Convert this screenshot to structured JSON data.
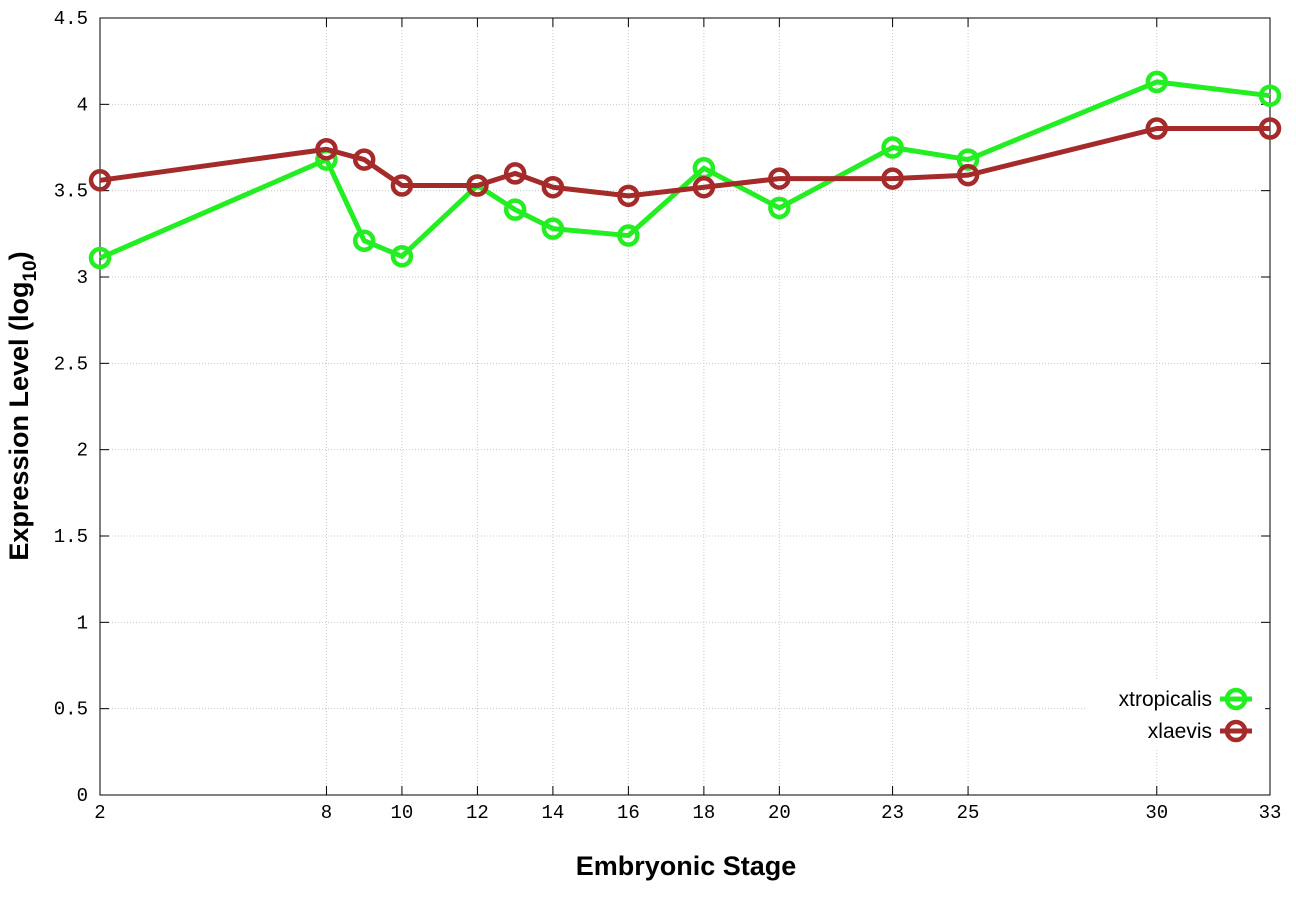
{
  "chart_data": {
    "type": "line",
    "title": "",
    "xlabel": "Embryonic Stage",
    "ylabel": "Expression Level (log",
    "ylabel_subscript": "10",
    "ylabel_suffix": ")",
    "xlim": [
      2,
      33
    ],
    "ylim": [
      0,
      4.5
    ],
    "x_ticks": [
      2,
      8,
      10,
      12,
      14,
      16,
      18,
      20,
      23,
      25,
      30,
      33
    ],
    "y_ticks": [
      "0",
      "0.5",
      "1",
      "1.5",
      "2",
      "2.5",
      "3",
      "3.5",
      "4",
      "4.5"
    ],
    "grid": true,
    "legend_position": "bottom-right",
    "x": [
      2,
      8,
      9,
      10,
      12,
      13,
      14,
      16,
      18,
      20,
      23,
      25,
      30,
      33
    ],
    "series": [
      {
        "name": "xtropicalis",
        "color": "#22ee22",
        "values": [
          3.11,
          3.68,
          3.21,
          3.12,
          3.53,
          3.39,
          3.28,
          3.24,
          3.63,
          3.4,
          3.75,
          3.68,
          4.13,
          4.05
        ]
      },
      {
        "name": "xlaevis",
        "color": "#a52a2a",
        "values": [
          3.56,
          3.74,
          3.68,
          3.53,
          3.53,
          3.6,
          3.52,
          3.47,
          3.52,
          3.57,
          3.57,
          3.59,
          3.86,
          3.86
        ]
      }
    ]
  }
}
